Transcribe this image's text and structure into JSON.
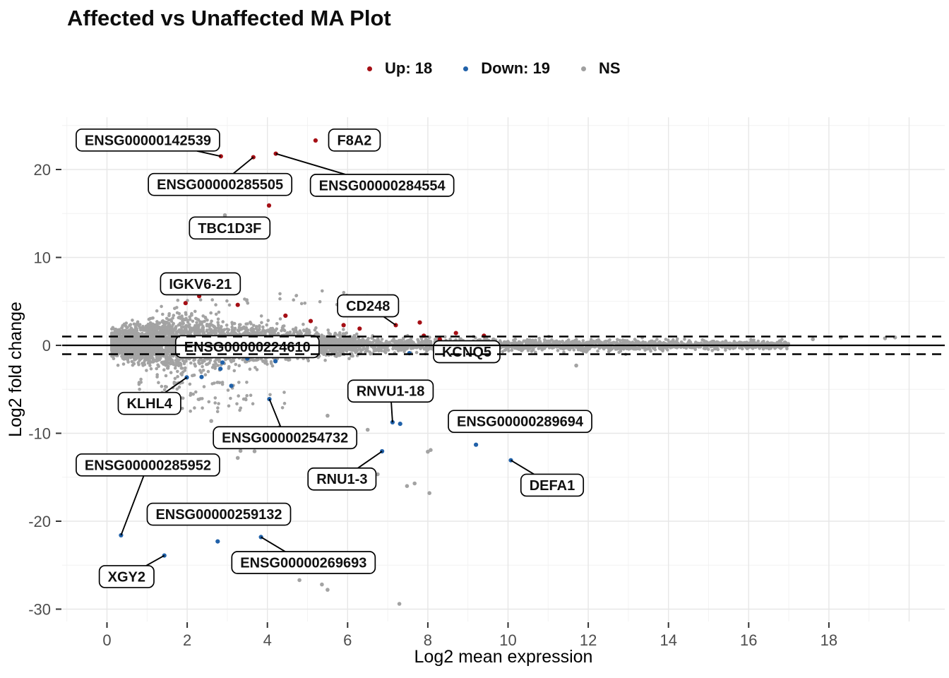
{
  "title": "Affected vs Unaffected MA Plot",
  "legend": {
    "items": [
      {
        "name": "up",
        "label": "Up: 18",
        "color": "#a50f15"
      },
      {
        "name": "down",
        "label": "Down: 19",
        "color": "#2061a9"
      },
      {
        "name": "ns",
        "label": "NS",
        "color": "#a0a0a0"
      }
    ]
  },
  "chart_data": {
    "type": "scatter",
    "title": "Affected vs Unaffected MA Plot",
    "xlabel": "Log2 mean expression",
    "ylabel": "Log2 fold change",
    "xlim": [
      -1.1,
      20.9
    ],
    "ylim": [
      -31.4,
      25.9
    ],
    "x_ticks": [
      0,
      2,
      4,
      6,
      8,
      10,
      12,
      14,
      16,
      18
    ],
    "y_ticks": [
      -30,
      -20,
      -10,
      0,
      10,
      20
    ],
    "grid": {
      "major_color": "#e7e7e7",
      "minor_color": "#f2f2f2",
      "background": "#ffffff"
    },
    "hlines": {
      "solid_y": 0,
      "dashed_y": [
        -1,
        1
      ],
      "line_color": "#000000"
    },
    "colors": {
      "up": "#a50f15",
      "down": "#2061a9",
      "ns": "#a3a3a3"
    },
    "counts": {
      "up": 18,
      "down": 19
    },
    "up_points": [
      [
        2.84,
        21.5
      ],
      [
        3.65,
        21.4
      ],
      [
        4.21,
        21.8
      ],
      [
        5.2,
        23.3
      ],
      [
        4.04,
        15.9
      ],
      [
        1.96,
        4.8
      ],
      [
        2.3,
        5.6
      ],
      [
        3.26,
        4.6
      ],
      [
        4.45,
        3.37
      ],
      [
        5.08,
        2.76
      ],
      [
        5.9,
        2.3
      ],
      [
        6.3,
        1.9
      ],
      [
        7.2,
        2.3
      ],
      [
        7.8,
        2.6
      ],
      [
        7.9,
        1.1
      ],
      [
        8.3,
        0.7
      ],
      [
        8.7,
        1.4
      ],
      [
        9.4,
        1.1
      ]
    ],
    "down_points": [
      [
        1.99,
        -3.65
      ],
      [
        2.36,
        -3.6
      ],
      [
        2.88,
        -1.95
      ],
      [
        2.83,
        -2.67
      ],
      [
        3.1,
        -4.6
      ],
      [
        4.2,
        -1.8
      ],
      [
        4.05,
        -6.11
      ],
      [
        7.12,
        -8.75
      ],
      [
        7.31,
        -8.92
      ],
      [
        7.54,
        -0.89
      ],
      [
        9.2,
        -11.3
      ],
      [
        10.07,
        -13.07
      ],
      [
        6.86,
        -12.05
      ],
      [
        0.35,
        -21.6
      ],
      [
        2.76,
        -22.3
      ],
      [
        1.43,
        -23.9
      ],
      [
        3.84,
        -21.8
      ],
      [
        8.95,
        -1.2
      ],
      [
        3.5,
        -1.5
      ]
    ],
    "ns_outlier_points": [
      [
        2.94,
        14.8
      ],
      [
        3.68,
        -12.05
      ],
      [
        3.26,
        -12.8
      ],
      [
        3.33,
        -12.0
      ],
      [
        2.6,
        -8.6
      ],
      [
        4.3,
        -9.3
      ],
      [
        5.5,
        -8.0
      ],
      [
        6.5,
        -9.6
      ],
      [
        8.0,
        -12.1
      ],
      [
        8.07,
        -11.9
      ],
      [
        6.75,
        -14.66
      ],
      [
        5.5,
        -14.8
      ],
      [
        7.48,
        -16.0
      ],
      [
        7.67,
        -15.7
      ],
      [
        8.04,
        -16.8
      ],
      [
        4.8,
        -26.7
      ],
      [
        5.36,
        -27.2
      ],
      [
        5.5,
        -27.8
      ],
      [
        7.29,
        -29.4
      ],
      [
        11.7,
        -2.3
      ],
      [
        17.6,
        0.7
      ],
      [
        18.3,
        0.9
      ],
      [
        19.4,
        0.8
      ],
      [
        19.65,
        0.9
      ]
    ],
    "gene_labels": [
      {
        "text": "ENSG00000142539",
        "label_x": 1.02,
        "label_y": 23.35,
        "connector": true,
        "point_x": 2.84,
        "point_y": 21.5
      },
      {
        "text": "F8A2",
        "label_x": 6.17,
        "label_y": 23.35,
        "connector": false
      },
      {
        "text": "ENSG00000285505",
        "label_x": 2.82,
        "label_y": 18.3,
        "connector": true,
        "point_x": 3.65,
        "point_y": 21.4
      },
      {
        "text": "ENSG00000284554",
        "label_x": 6.86,
        "label_y": 18.2,
        "connector": true,
        "point_x": 4.21,
        "point_y": 21.8
      },
      {
        "text": "TBC1D3F",
        "label_x": 3.06,
        "label_y": 13.35,
        "connector": false
      },
      {
        "text": "IGKV6-21",
        "label_x": 2.33,
        "label_y": 7.0,
        "connector": false
      },
      {
        "text": "CD248",
        "label_x": 6.51,
        "label_y": 4.5,
        "connector": true,
        "point_x": 7.2,
        "point_y": 2.3
      },
      {
        "text": "ENSG00000224610",
        "label_x": 3.5,
        "label_y": -0.15,
        "connector": false
      },
      {
        "text": "KCNQ5",
        "label_x": 8.97,
        "label_y": -0.72,
        "connector": false
      },
      {
        "text": "KLHL4",
        "label_x": 1.06,
        "label_y": -6.6,
        "connector": true,
        "point_x": 1.99,
        "point_y": -3.65
      },
      {
        "text": "ENSG00000254732",
        "label_x": 4.44,
        "label_y": -10.5,
        "connector": true,
        "point_x": 4.05,
        "point_y": -6.11
      },
      {
        "text": "RNVU1-18",
        "label_x": 7.07,
        "label_y": -5.2,
        "connector": true,
        "point_x": 7.12,
        "point_y": -8.75
      },
      {
        "text": "ENSG00000289694",
        "label_x": 10.3,
        "label_y": -8.65,
        "connector": false
      },
      {
        "text": "DEFA1",
        "label_x": 11.1,
        "label_y": -15.9,
        "connector": true,
        "point_x": 10.07,
        "point_y": -13.07
      },
      {
        "text": "RNU1-3",
        "label_x": 5.86,
        "label_y": -15.2,
        "connector": true,
        "point_x": 6.86,
        "point_y": -12.05
      },
      {
        "text": "ENSG00000285952",
        "label_x": 1.02,
        "label_y": -13.6,
        "connector": true,
        "point_x": 0.35,
        "point_y": -21.6
      },
      {
        "text": "ENSG00000259132",
        "label_x": 2.79,
        "label_y": -19.2,
        "connector": false
      },
      {
        "text": "XGY2",
        "label_x": 0.49,
        "label_y": -26.3,
        "connector": true,
        "point_x": 1.43,
        "point_y": -23.9
      },
      {
        "text": "ENSG00000269693",
        "label_x": 4.9,
        "label_y": -24.7,
        "connector": true,
        "point_x": 3.84,
        "point_y": -21.8
      }
    ],
    "ns_cloud": {
      "synthesized": true,
      "note": "dense NS point cloud: comet-shaped blob centered near x=1.5 spanning y -4.5..+5.3, thinning into a tight band of halfwidth ~1 that narrows to ~0.3 by x=17",
      "seed": 20240607,
      "blob_n": 4600,
      "band_n": 2400,
      "below_n": 80,
      "above_n": 30
    }
  }
}
